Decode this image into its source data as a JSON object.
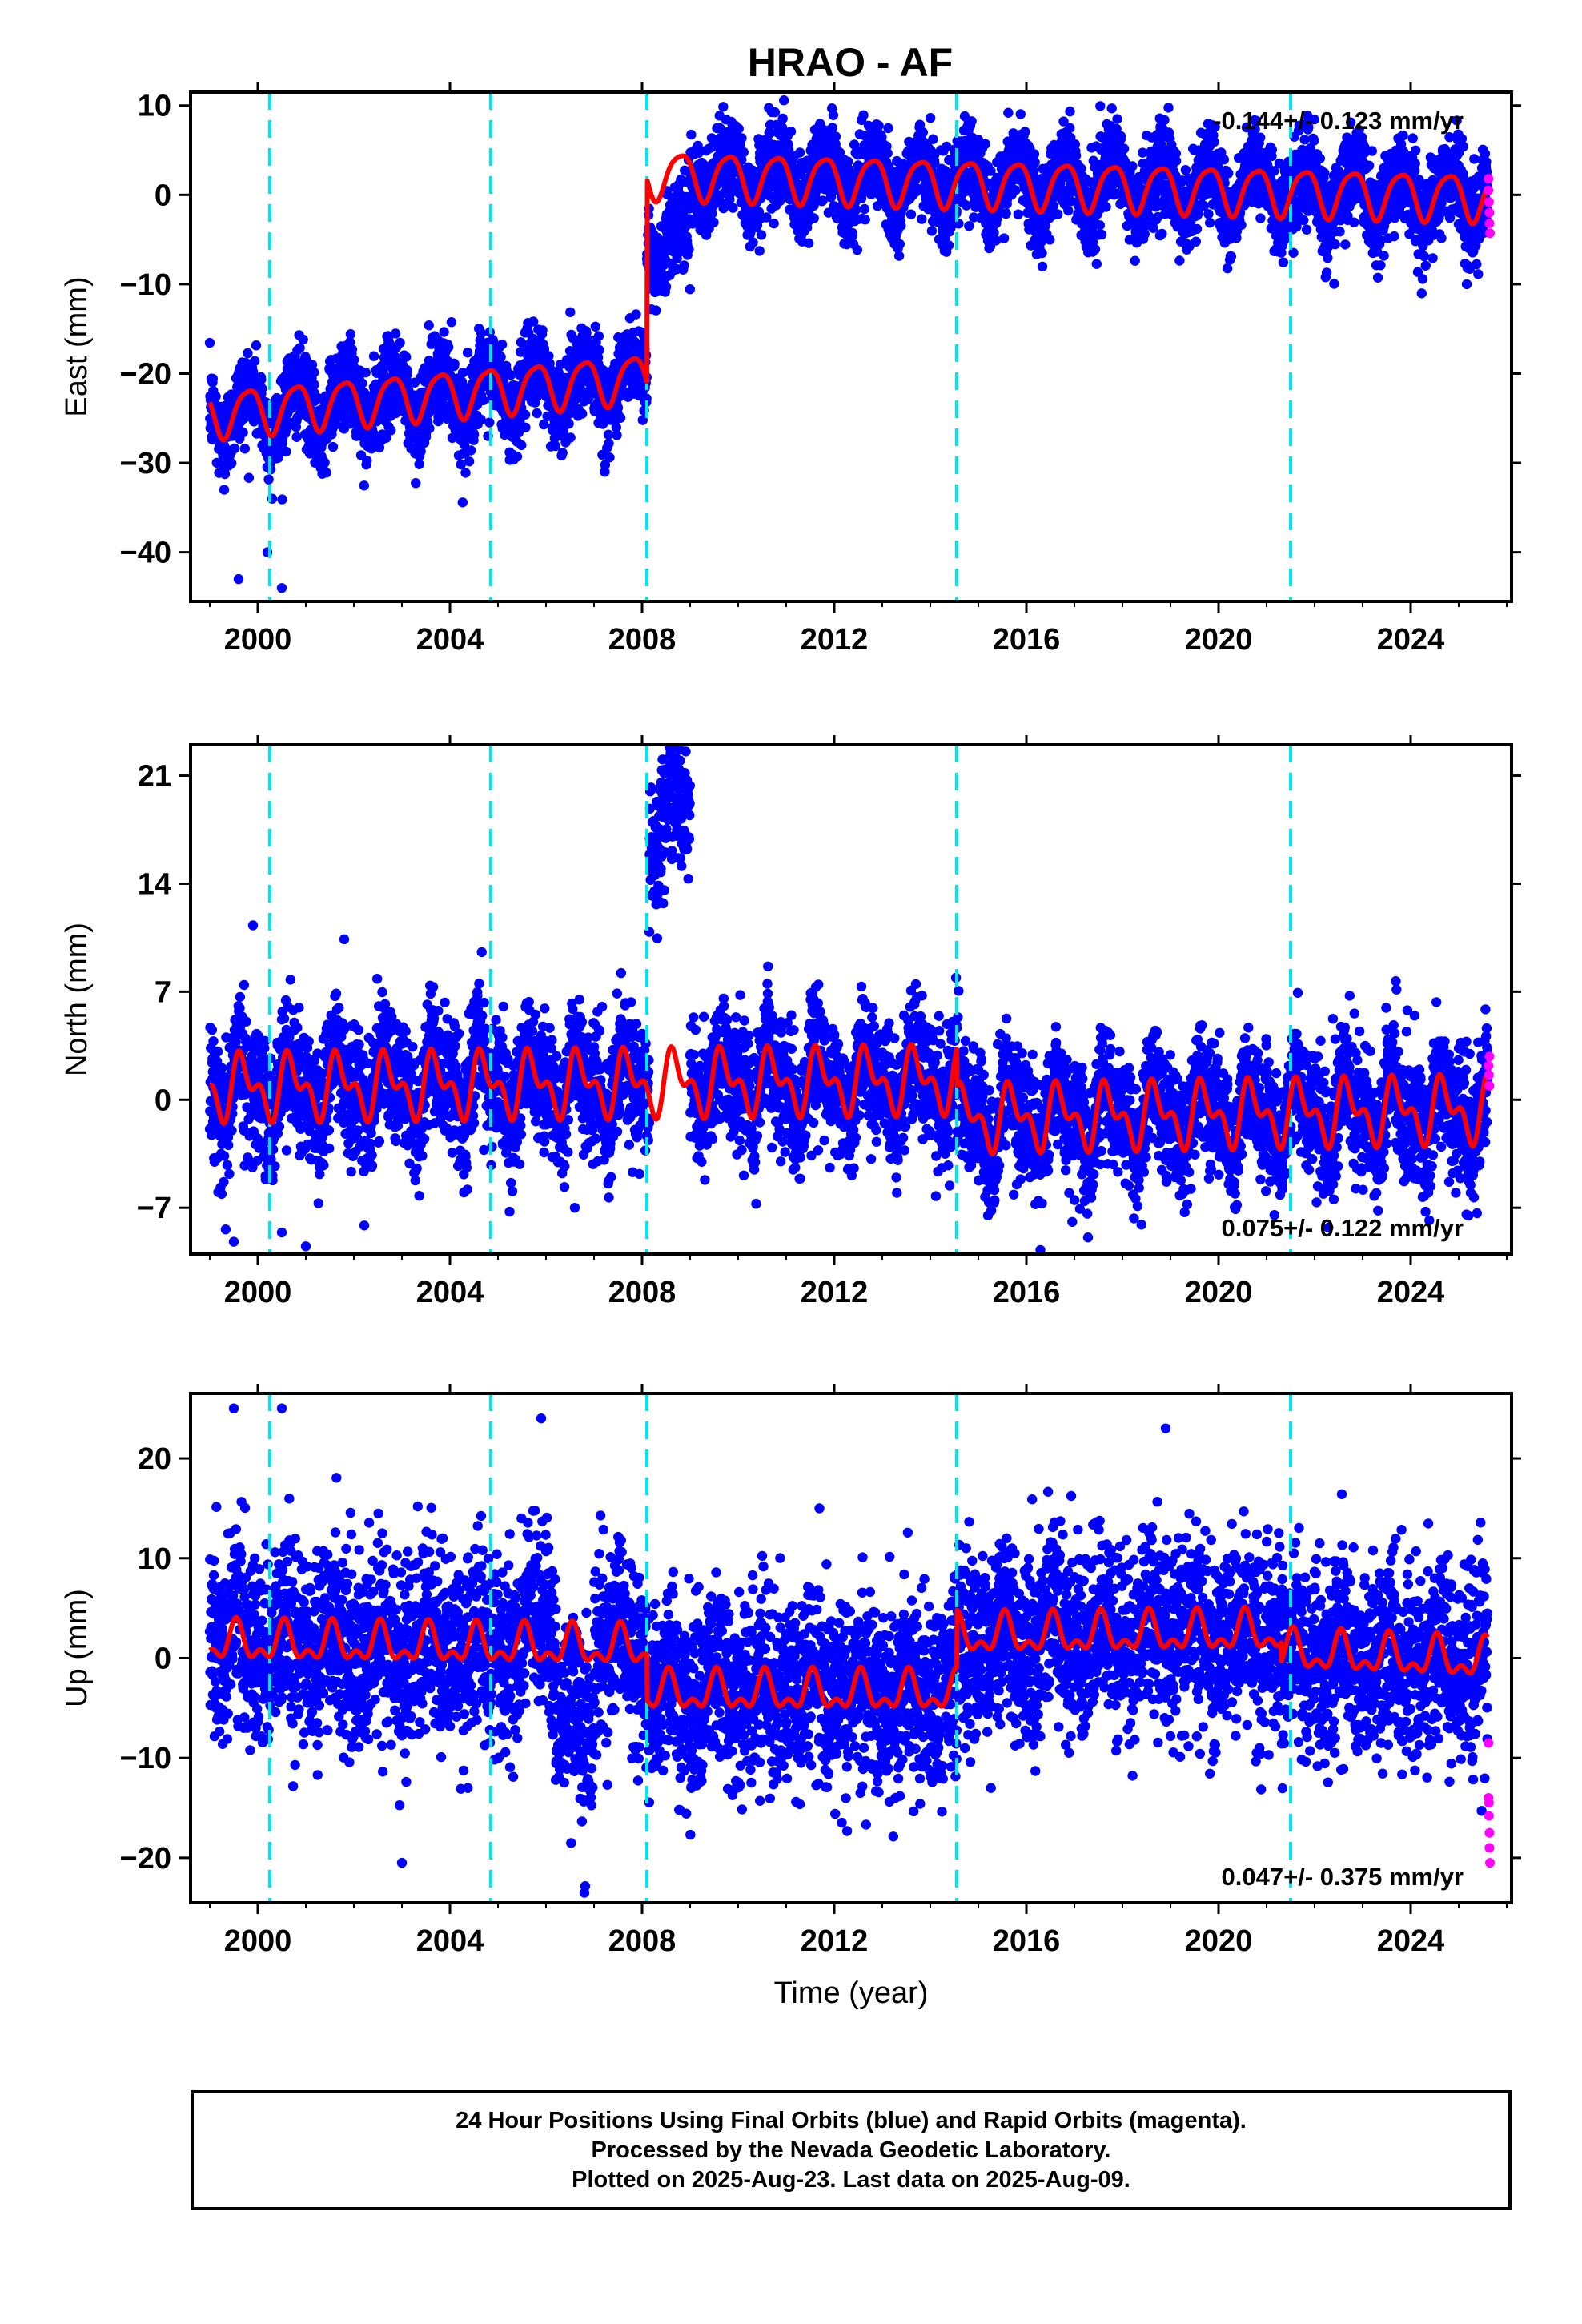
{
  "title": "HRAO - AF",
  "colors": {
    "final_points": "#0000ff",
    "rapid_points": "#ff00ff",
    "model_line": "#ff0000",
    "breaks": "#00e5ee"
  },
  "chart_data": [
    {
      "type": "scatter",
      "component": "east",
      "ylabel": "East (mm)",
      "xlabel": "",
      "xlim": [
        1998.6,
        2026.1
      ],
      "ylim": [
        -45.5,
        11.5
      ],
      "xticks": [
        2000,
        2004,
        2008,
        2012,
        2016,
        2020,
        2024
      ],
      "yticks": [
        10,
        0,
        -10,
        -20,
        -30,
        -40
      ],
      "rate_label": "-0.144+/- 0.123 mm/yr",
      "rate_position": "top-right",
      "breaks": [
        2000.25,
        2004.85,
        2008.1,
        2014.55,
        2021.5
      ],
      "model": {
        "segments": [
          {
            "from": 1999.0,
            "to": 2008.1,
            "offset": -24.5,
            "slope": 0.45
          },
          {
            "from": 2008.1,
            "to": 2025.6,
            "offset": 2.3,
            "slope": -0.144
          }
        ],
        "annual_amplitude": 2.6,
        "annual_phase": 0.45,
        "semiannual_amplitude": 0.5,
        "semiannual_phase": 0.2
      },
      "scatter_noise_sd": 2.4,
      "scatter_episodes": [
        {
          "from": 2008.1,
          "to": 2009.0,
          "offset": -7.0
        }
      ],
      "outliers": [
        [
          1999.6,
          -43
        ],
        [
          2000.2,
          -40
        ],
        [
          2000.5,
          -44
        ],
        [
          1999.3,
          -33
        ],
        [
          2000.3,
          -34
        ]
      ],
      "rapid": [
        [
          2025.62,
          1.8
        ],
        [
          2025.62,
          0.5
        ],
        [
          2025.63,
          -0.8
        ],
        [
          2025.64,
          -2.0
        ],
        [
          2025.64,
          -3.2
        ],
        [
          2025.65,
          -4.3
        ]
      ]
    },
    {
      "type": "scatter",
      "component": "north",
      "ylabel": "North (mm)",
      "xlabel": "",
      "xlim": [
        1998.6,
        2026.1
      ],
      "ylim": [
        -10.0,
        23.0
      ],
      "xticks": [
        2000,
        2004,
        2008,
        2012,
        2016,
        2020,
        2024
      ],
      "yticks": [
        21,
        14,
        7,
        0,
        -7
      ],
      "rate_label": "0.075+/- 0.122 mm/yr",
      "rate_position": "bottom-right",
      "breaks": [
        2000.25,
        2004.85,
        2008.1,
        2014.55,
        2021.5
      ],
      "model": {
        "segments": [
          {
            "from": 1999.0,
            "to": 2014.55,
            "offset": 0.8,
            "slope": 0.03
          },
          {
            "from": 2014.55,
            "to": 2025.6,
            "offset": -1.2,
            "slope": 0.05
          }
        ],
        "annual_amplitude": 1.6,
        "annual_phase": 0.55,
        "semiannual_amplitude": 1.1,
        "semiannual_phase": 0.1
      },
      "scatter_noise_sd": 2.0,
      "scatter_episodes": [
        {
          "from": 2008.15,
          "to": 2009.0,
          "offset": 17.5
        }
      ],
      "outliers": [
        [
          1999.5,
          -9.2
        ],
        [
          2000.5,
          -8.6
        ],
        [
          2001.0,
          -9.5
        ],
        [
          2006.6,
          -7
        ],
        [
          2015.2,
          -7.5
        ],
        [
          1999.9,
          11.3
        ],
        [
          2001.8,
          10.4
        ]
      ],
      "rapid": [
        [
          2025.62,
          2.2
        ],
        [
          2025.63,
          1.6
        ],
        [
          2025.64,
          0.9
        ],
        [
          2025.64,
          2.8
        ]
      ]
    },
    {
      "type": "scatter",
      "component": "up",
      "ylabel": "Up (mm)",
      "xlabel": "Time (year)",
      "xlim": [
        1998.6,
        2026.1
      ],
      "ylim": [
        -24.5,
        26.5
      ],
      "xticks": [
        2000,
        2004,
        2008,
        2012,
        2016,
        2020,
        2024
      ],
      "yticks": [
        20,
        10,
        0,
        -10,
        -20
      ],
      "rate_label": "0.047+/- 0.375 mm/yr",
      "rate_position": "bottom-right",
      "breaks": [
        2000.25,
        2004.85,
        2008.1,
        2014.55,
        2021.5
      ],
      "model": {
        "segments": [
          {
            "from": 1999.0,
            "to": 2008.1,
            "offset": 1.5,
            "slope": -0.05
          },
          {
            "from": 2008.1,
            "to": 2014.55,
            "offset": -3.5,
            "slope": 0.0
          },
          {
            "from": 2014.55,
            "to": 2021.3,
            "offset": 2.2,
            "slope": 0.05
          },
          {
            "from": 2021.3,
            "to": 2025.6,
            "offset": 0.6,
            "slope": -0.2
          }
        ],
        "annual_amplitude": 1.6,
        "annual_phase": 0.7,
        "semiannual_amplitude": 1.0,
        "semiannual_phase": 0.15
      },
      "scatter_noise_sd": 4.6,
      "scatter_episodes": [
        {
          "from": 2006.2,
          "to": 2007.0,
          "offset": -7.0
        },
        {
          "from": 2005.6,
          "to": 2006.1,
          "offset": 4.0
        }
      ],
      "outliers": [
        [
          1999.5,
          25
        ],
        [
          2000.5,
          25
        ],
        [
          2005.9,
          24
        ],
        [
          2018.9,
          23
        ],
        [
          2006.8,
          -23.5
        ],
        [
          2003.0,
          -20.5
        ]
      ],
      "rapid": [
        [
          2025.62,
          -8.5
        ],
        [
          2025.62,
          -14.0
        ],
        [
          2025.63,
          -14.5
        ],
        [
          2025.63,
          -15.8
        ],
        [
          2025.64,
          -17.5
        ],
        [
          2025.64,
          -19.0
        ],
        [
          2025.65,
          -20.5
        ]
      ]
    }
  ],
  "caption": {
    "line1": "24 Hour Positions Using Final Orbits (blue) and Rapid Orbits (magenta).",
    "line2": "Processed by the Nevada Geodetic Laboratory.",
    "line3": "Plotted on 2025-Aug-23. Last data on 2025-Aug-09."
  }
}
